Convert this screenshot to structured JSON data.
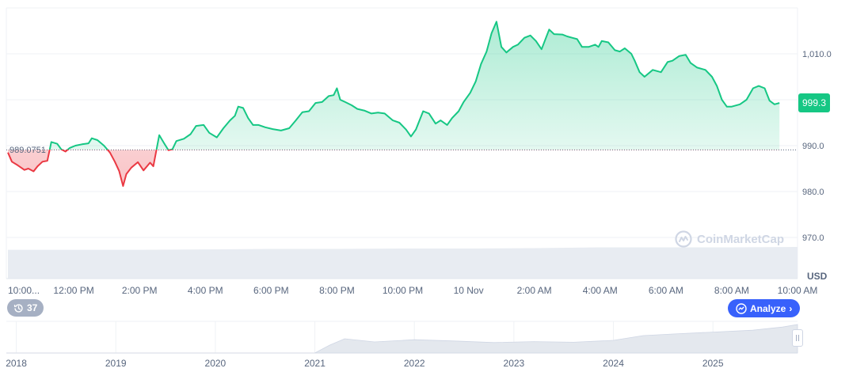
{
  "chart_data": {
    "type": "line",
    "title": "",
    "xlabel": "",
    "ylabel": "",
    "currency": "USD",
    "ylim": [
      965,
      1020
    ],
    "y_ticks": [
      970.0,
      980.0,
      990.0,
      1010.0
    ],
    "y_tick_labels": [
      "970.0",
      "980.0",
      "990.0",
      "1,010.0"
    ],
    "x_ticks": [
      {
        "t": 0,
        "label": "10:00..."
      },
      {
        "t": 2,
        "label": "12:00 PM"
      },
      {
        "t": 4,
        "label": "2:00 PM"
      },
      {
        "t": 6,
        "label": "4:00 PM"
      },
      {
        "t": 8,
        "label": "6:00 PM"
      },
      {
        "t": 10,
        "label": "8:00 PM"
      },
      {
        "t": 12,
        "label": "10:00 PM"
      },
      {
        "t": 14,
        "label": "10 Nov"
      },
      {
        "t": 16,
        "label": "2:00 AM"
      },
      {
        "t": 18,
        "label": "4:00 AM"
      },
      {
        "t": 20,
        "label": "6:00 AM"
      },
      {
        "t": 22,
        "label": "8:00 AM"
      },
      {
        "t": 24,
        "label": "10:00 AM"
      }
    ],
    "baseline": 989.0751,
    "baseline_label": "989.0751",
    "current_price": 999.3,
    "current_price_label": "999.3",
    "grid": true,
    "colors": {
      "up": "#16c784",
      "down": "#ea3943",
      "baseline": "#58667e",
      "volume": "#e8ecf2"
    },
    "series": [
      {
        "values": [
          [
            0.0,
            988.5
          ],
          [
            0.12,
            986.5
          ],
          [
            0.3,
            985.7
          ],
          [
            0.5,
            984.7
          ],
          [
            0.62,
            985.0
          ],
          [
            0.78,
            984.4
          ],
          [
            0.9,
            985.5
          ],
          [
            1.05,
            986.5
          ],
          [
            1.2,
            986.7
          ],
          [
            1.32,
            990.8
          ],
          [
            1.5,
            990.4
          ],
          [
            1.62,
            989.2
          ],
          [
            1.75,
            988.7
          ],
          [
            1.88,
            989.5
          ],
          [
            2.05,
            990.0
          ],
          [
            2.25,
            990.3
          ],
          [
            2.45,
            990.5
          ],
          [
            2.55,
            991.6
          ],
          [
            2.72,
            991.2
          ],
          [
            2.92,
            990.0
          ],
          [
            3.1,
            988.5
          ],
          [
            3.25,
            986.5
          ],
          [
            3.38,
            984.5
          ],
          [
            3.5,
            981.2
          ],
          [
            3.6,
            983.8
          ],
          [
            3.75,
            985.2
          ],
          [
            3.95,
            986.4
          ],
          [
            4.12,
            984.6
          ],
          [
            4.32,
            986.3
          ],
          [
            4.42,
            985.5
          ],
          [
            4.6,
            992.3
          ],
          [
            4.75,
            990.5
          ],
          [
            4.88,
            989.0
          ],
          [
            5.0,
            989.2
          ],
          [
            5.12,
            991.0
          ],
          [
            5.35,
            991.5
          ],
          [
            5.55,
            992.5
          ],
          [
            5.72,
            994.3
          ],
          [
            5.95,
            994.5
          ],
          [
            6.12,
            992.8
          ],
          [
            6.35,
            991.8
          ],
          [
            6.55,
            993.8
          ],
          [
            6.75,
            995.5
          ],
          [
            6.9,
            996.5
          ],
          [
            7.0,
            998.5
          ],
          [
            7.15,
            998.2
          ],
          [
            7.3,
            996.0
          ],
          [
            7.45,
            994.5
          ],
          [
            7.62,
            994.5
          ],
          [
            7.82,
            994.0
          ],
          [
            8.05,
            993.6
          ],
          [
            8.3,
            993.3
          ],
          [
            8.55,
            993.8
          ],
          [
            8.75,
            995.5
          ],
          [
            8.95,
            997.3
          ],
          [
            9.15,
            997.5
          ],
          [
            9.35,
            999.3
          ],
          [
            9.55,
            999.5
          ],
          [
            9.75,
            1000.8
          ],
          [
            9.9,
            1001.0
          ],
          [
            10.0,
            1002.5
          ],
          [
            10.1,
            1000.0
          ],
          [
            10.25,
            999.5
          ],
          [
            10.45,
            998.8
          ],
          [
            10.62,
            998.0
          ],
          [
            10.85,
            997.6
          ],
          [
            11.05,
            997.0
          ],
          [
            11.25,
            997.2
          ],
          [
            11.45,
            997.0
          ],
          [
            11.7,
            995.5
          ],
          [
            11.9,
            995.0
          ],
          [
            12.1,
            993.5
          ],
          [
            12.25,
            992.0
          ],
          [
            12.4,
            993.5
          ],
          [
            12.62,
            997.5
          ],
          [
            12.8,
            997.0
          ],
          [
            13.0,
            994.8
          ],
          [
            13.15,
            995.5
          ],
          [
            13.35,
            994.5
          ],
          [
            13.5,
            996.0
          ],
          [
            13.7,
            997.5
          ],
          [
            13.85,
            999.5
          ],
          [
            14.05,
            1001.5
          ],
          [
            14.22,
            1004.0
          ],
          [
            14.38,
            1007.8
          ],
          [
            14.55,
            1010.5
          ],
          [
            14.7,
            1014.5
          ],
          [
            14.85,
            1017.0
          ],
          [
            15.0,
            1011.5
          ],
          [
            15.15,
            1010.3
          ],
          [
            15.35,
            1011.5
          ],
          [
            15.5,
            1012.0
          ],
          [
            15.7,
            1013.5
          ],
          [
            15.88,
            1014.0
          ],
          [
            16.05,
            1012.8
          ],
          [
            16.22,
            1011.0
          ],
          [
            16.45,
            1015.3
          ],
          [
            16.6,
            1014.3
          ],
          [
            16.85,
            1014.2
          ],
          [
            17.0,
            1013.8
          ],
          [
            17.15,
            1013.5
          ],
          [
            17.3,
            1013.2
          ],
          [
            17.45,
            1011.5
          ],
          [
            17.65,
            1011.5
          ],
          [
            17.85,
            1012.0
          ],
          [
            17.95,
            1011.5
          ],
          [
            18.05,
            1012.8
          ],
          [
            18.25,
            1012.5
          ],
          [
            18.45,
            1010.8
          ],
          [
            18.6,
            1010.5
          ],
          [
            18.75,
            1011.2
          ],
          [
            18.95,
            1010.0
          ],
          [
            19.05,
            1008.5
          ],
          [
            19.2,
            1006.0
          ],
          [
            19.35,
            1005.0
          ],
          [
            19.6,
            1006.5
          ],
          [
            19.85,
            1006.0
          ],
          [
            20.05,
            1008.2
          ],
          [
            20.2,
            1008.5
          ],
          [
            20.4,
            1009.5
          ],
          [
            20.6,
            1009.8
          ],
          [
            20.75,
            1008.0
          ],
          [
            20.95,
            1007.0
          ],
          [
            21.2,
            1006.5
          ],
          [
            21.4,
            1005.0
          ],
          [
            21.55,
            1003.0
          ],
          [
            21.7,
            1000.0
          ],
          [
            21.85,
            998.5
          ],
          [
            22.0,
            998.5
          ],
          [
            22.25,
            999.0
          ],
          [
            22.45,
            1000.0
          ],
          [
            22.65,
            1002.5
          ],
          [
            22.82,
            1003.0
          ],
          [
            23.0,
            1002.5
          ],
          [
            23.15,
            999.8
          ],
          [
            23.3,
            999.0
          ],
          [
            23.45,
            999.3
          ]
        ]
      }
    ],
    "volume": {
      "x": [
        0,
        2,
        4,
        6,
        8,
        10,
        12,
        14,
        16,
        18,
        20,
        22,
        24
      ],
      "values": [
        0.7,
        0.7,
        0.7,
        0.71,
        0.72,
        0.72,
        0.73,
        0.73,
        0.74,
        0.76,
        0.76,
        0.76,
        0.77
      ]
    },
    "navigator": {
      "x_ticks": [
        {
          "t": 2018,
          "label": "2018"
        },
        {
          "t": 2019,
          "label": "2019"
        },
        {
          "t": 2020,
          "label": "2020"
        },
        {
          "t": 2021,
          "label": "2021"
        },
        {
          "t": 2022,
          "label": "2022"
        },
        {
          "t": 2023,
          "label": "2023"
        },
        {
          "t": 2024,
          "label": "2024"
        },
        {
          "t": 2025,
          "label": "2025"
        }
      ],
      "x": [
        2017.9,
        2019.0,
        2020.0,
        2021.0,
        2021.15,
        2021.3,
        2021.6,
        2022.0,
        2022.4,
        2022.8,
        2023.2,
        2023.6,
        2024.0,
        2024.3,
        2024.6,
        2025.0,
        2025.4,
        2025.7,
        2025.85
      ],
      "values": [
        0,
        0,
        0,
        0,
        0.25,
        0.45,
        0.35,
        0.42,
        0.38,
        0.33,
        0.36,
        0.34,
        0.4,
        0.55,
        0.6,
        0.66,
        0.72,
        0.82,
        0.9
      ]
    }
  },
  "controls": {
    "history_count": "37",
    "analyze_label": "Analyze",
    "watermark": "CoinMarketCap"
  }
}
